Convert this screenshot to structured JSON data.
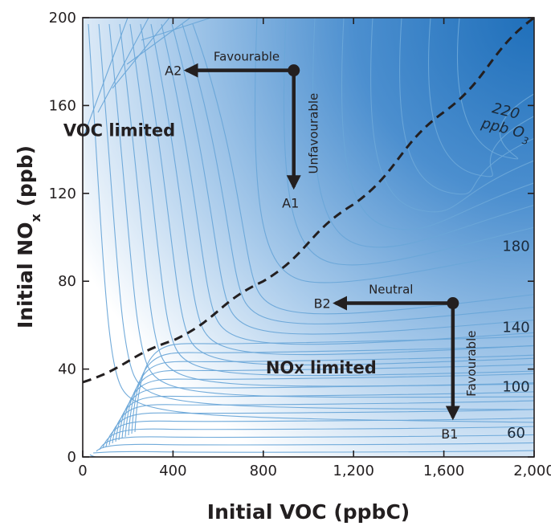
{
  "chart_data": {
    "type": "contour",
    "xlabel": "Initial VOC (ppbC)",
    "ylabel_main": "Initial NO",
    "ylabel_sub": "x",
    "ylabel_unit": " (ppb)",
    "xlim": [
      0,
      2000
    ],
    "ylim": [
      0,
      200
    ],
    "x_ticks": [
      0,
      400,
      800,
      1200,
      1600,
      2000
    ],
    "x_tick_labels": [
      "0",
      "400",
      "800",
      "1,200",
      "1,600",
      "2,000"
    ],
    "y_ticks": [
      0,
      40,
      80,
      120,
      160,
      200
    ],
    "y_tick_labels": [
      "0",
      "40",
      "80",
      "120",
      "160",
      "200"
    ],
    "contour_labels": [
      {
        "text": "60",
        "x": 1920,
        "y": 11
      },
      {
        "text": "100",
        "x": 1920,
        "y": 32
      },
      {
        "text": "140",
        "x": 1920,
        "y": 59
      },
      {
        "text": "180",
        "x": 1920,
        "y": 96
      }
    ],
    "o3_label": {
      "value": "220",
      "unit": "ppb O",
      "sub": "3",
      "x": 1870,
      "y": 151
    },
    "regions": [
      {
        "main": "VOC limited",
        "sub": "",
        "x": 270,
        "y": 149
      },
      {
        "main": "NO",
        "sub": "X",
        "tail": " limited",
        "x": 1060,
        "y": 41
      }
    ],
    "ridge_line": {
      "style": "dashed",
      "x": [
        0,
        400,
        800,
        1200,
        1600,
        2000
      ],
      "y": [
        34,
        53,
        80,
        115,
        157,
        200
      ]
    },
    "points": [
      {
        "origin": [
          935,
          176
        ],
        "arrows": [
          {
            "to": [
              460,
              176
            ],
            "label": "A2",
            "annotation": "Favourable"
          },
          {
            "to": [
              935,
              123
            ],
            "label": "A1",
            "annotation": "Unfavourable"
          }
        ]
      },
      {
        "origin": [
          1640,
          70
        ],
        "arrows": [
          {
            "to": [
              1120,
              70
            ],
            "label": "B2",
            "annotation": "Neutral"
          },
          {
            "to": [
              1640,
              18
            ],
            "label": "B1",
            "annotation": "Favourable"
          }
        ]
      }
    ],
    "colors": {
      "low": "#ffffff",
      "high": "#2878c3",
      "contour": "#6aa6d8",
      "axis": "#231f20"
    }
  }
}
